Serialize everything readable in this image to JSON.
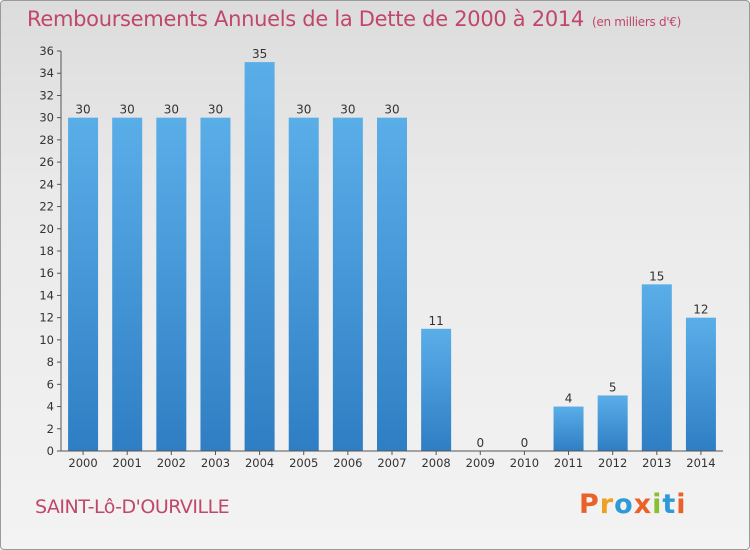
{
  "header": {
    "title": "Remboursements Annuels de la Dette de 2000 à 2014",
    "unit": "(en milliers d'€)"
  },
  "footer": {
    "town": "SAINT-Lô-D'OURVILLE",
    "logo": "Proxiti"
  },
  "colors": {
    "title": "#c0476a",
    "bar_top": "#5aaee8",
    "bar_bottom": "#2f7ec4",
    "logo_letters": [
      "#e8622a",
      "#f0a020",
      "#2f9ad8",
      "#e8622a",
      "#88c030",
      "#2f9ad8",
      "#e8622a"
    ]
  },
  "chart_data": {
    "type": "bar",
    "categories": [
      "2000",
      "2001",
      "2002",
      "2003",
      "2004",
      "2005",
      "2006",
      "2007",
      "2008",
      "2009",
      "2010",
      "2011",
      "2012",
      "2013",
      "2014"
    ],
    "values": [
      30,
      30,
      30,
      30,
      35,
      30,
      30,
      30,
      11,
      0,
      0,
      4,
      5,
      15,
      12
    ],
    "ylim": [
      0,
      36
    ],
    "yticks": [
      0,
      2,
      4,
      6,
      8,
      10,
      12,
      14,
      16,
      18,
      20,
      22,
      24,
      26,
      28,
      30,
      32,
      34,
      36
    ],
    "grid": false,
    "data_labels": true
  }
}
